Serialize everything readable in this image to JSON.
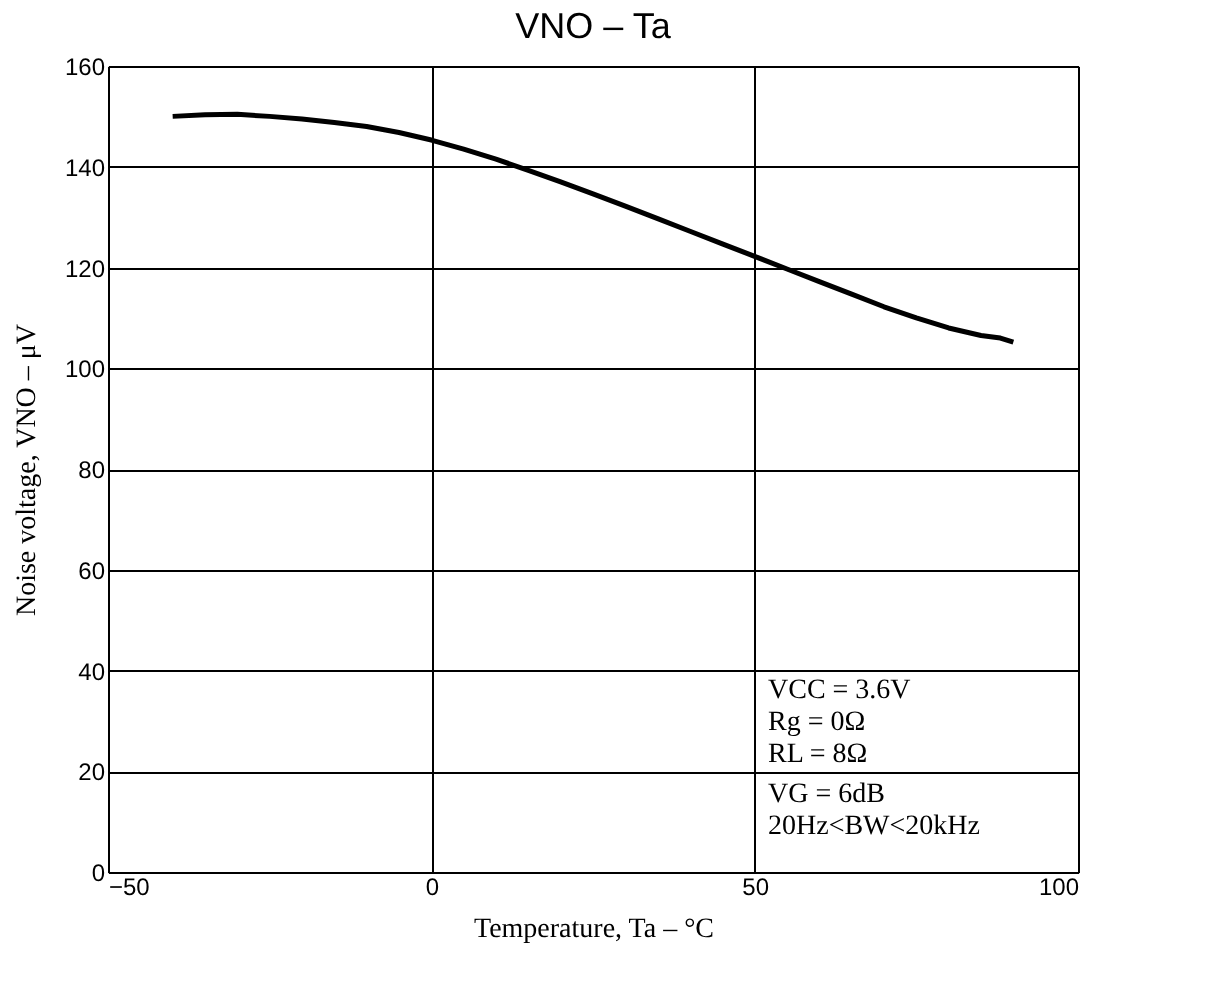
{
  "chart_data": {
    "type": "line",
    "title": "VNO – Ta",
    "xlabel": "Temperature, Ta – °C",
    "ylabel": "Noise voltage, VNO – μV",
    "x": [
      -40,
      -35,
      -30,
      -25,
      -20,
      -15,
      -10,
      -5,
      0,
      5,
      10,
      15,
      20,
      25,
      30,
      35,
      40,
      45,
      50,
      55,
      60,
      65,
      70,
      75,
      80,
      85,
      88,
      90
    ],
    "series": [
      {
        "color": "#000000",
        "values": [
          150,
          150.3,
          150.4,
          150,
          149.5,
          148.8,
          148,
          146.8,
          145.3,
          143.5,
          141.5,
          139.3,
          137,
          134.6,
          132.2,
          129.7,
          127.2,
          124.7,
          122.2,
          119.7,
          117.2,
          114.7,
          112.2,
          110,
          108,
          106.5,
          106,
          105.2
        ]
      }
    ],
    "xlim": [
      -50,
      100
    ],
    "xticks": [
      -50,
      0,
      50,
      100
    ],
    "ylim": [
      0,
      160
    ],
    "yticks": [
      0,
      20,
      40,
      60,
      80,
      100,
      120,
      140,
      160
    ],
    "grid": true,
    "legend": false,
    "marker": "none",
    "line_style": "solid",
    "annotations": [
      "VCC = 3.6V",
      "Rg = 0Ω",
      "RL = 8Ω",
      "VG = 6dB",
      "20Hz<BW<20kHz"
    ]
  }
}
